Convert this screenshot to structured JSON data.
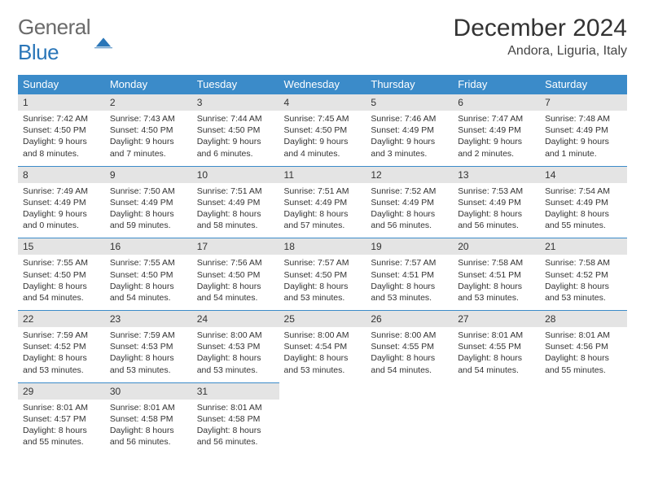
{
  "brand": {
    "word1": "General",
    "word2": "Blue"
  },
  "header": {
    "month_title": "December 2024",
    "location": "Andora, Liguria, Italy"
  },
  "styling": {
    "header_bg": "#3b8bc9",
    "header_text": "#ffffff",
    "daynum_bg": "#e4e4e4",
    "daynum_border": "#3b8bc9",
    "body_text": "#333333",
    "logo_gray": "#6a6a6a",
    "logo_blue": "#2a76b8",
    "font_family": "Arial",
    "month_title_fontsize": 30,
    "location_fontsize": 16,
    "dayheader_fontsize": 13,
    "daynum_fontsize": 12,
    "body_fontsize": 10.5
  },
  "day_headers": [
    "Sunday",
    "Monday",
    "Tuesday",
    "Wednesday",
    "Thursday",
    "Friday",
    "Saturday"
  ],
  "days": [
    {
      "n": 1,
      "sr": "7:42 AM",
      "ss": "4:50 PM",
      "dl": "9 hours and 8 minutes."
    },
    {
      "n": 2,
      "sr": "7:43 AM",
      "ss": "4:50 PM",
      "dl": "9 hours and 7 minutes."
    },
    {
      "n": 3,
      "sr": "7:44 AM",
      "ss": "4:50 PM",
      "dl": "9 hours and 6 minutes."
    },
    {
      "n": 4,
      "sr": "7:45 AM",
      "ss": "4:50 PM",
      "dl": "9 hours and 4 minutes."
    },
    {
      "n": 5,
      "sr": "7:46 AM",
      "ss": "4:49 PM",
      "dl": "9 hours and 3 minutes."
    },
    {
      "n": 6,
      "sr": "7:47 AM",
      "ss": "4:49 PM",
      "dl": "9 hours and 2 minutes."
    },
    {
      "n": 7,
      "sr": "7:48 AM",
      "ss": "4:49 PM",
      "dl": "9 hours and 1 minute."
    },
    {
      "n": 8,
      "sr": "7:49 AM",
      "ss": "4:49 PM",
      "dl": "9 hours and 0 minutes."
    },
    {
      "n": 9,
      "sr": "7:50 AM",
      "ss": "4:49 PM",
      "dl": "8 hours and 59 minutes."
    },
    {
      "n": 10,
      "sr": "7:51 AM",
      "ss": "4:49 PM",
      "dl": "8 hours and 58 minutes."
    },
    {
      "n": 11,
      "sr": "7:51 AM",
      "ss": "4:49 PM",
      "dl": "8 hours and 57 minutes."
    },
    {
      "n": 12,
      "sr": "7:52 AM",
      "ss": "4:49 PM",
      "dl": "8 hours and 56 minutes."
    },
    {
      "n": 13,
      "sr": "7:53 AM",
      "ss": "4:49 PM",
      "dl": "8 hours and 56 minutes."
    },
    {
      "n": 14,
      "sr": "7:54 AM",
      "ss": "4:49 PM",
      "dl": "8 hours and 55 minutes."
    },
    {
      "n": 15,
      "sr": "7:55 AM",
      "ss": "4:50 PM",
      "dl": "8 hours and 54 minutes."
    },
    {
      "n": 16,
      "sr": "7:55 AM",
      "ss": "4:50 PM",
      "dl": "8 hours and 54 minutes."
    },
    {
      "n": 17,
      "sr": "7:56 AM",
      "ss": "4:50 PM",
      "dl": "8 hours and 54 minutes."
    },
    {
      "n": 18,
      "sr": "7:57 AM",
      "ss": "4:50 PM",
      "dl": "8 hours and 53 minutes."
    },
    {
      "n": 19,
      "sr": "7:57 AM",
      "ss": "4:51 PM",
      "dl": "8 hours and 53 minutes."
    },
    {
      "n": 20,
      "sr": "7:58 AM",
      "ss": "4:51 PM",
      "dl": "8 hours and 53 minutes."
    },
    {
      "n": 21,
      "sr": "7:58 AM",
      "ss": "4:52 PM",
      "dl": "8 hours and 53 minutes."
    },
    {
      "n": 22,
      "sr": "7:59 AM",
      "ss": "4:52 PM",
      "dl": "8 hours and 53 minutes."
    },
    {
      "n": 23,
      "sr": "7:59 AM",
      "ss": "4:53 PM",
      "dl": "8 hours and 53 minutes."
    },
    {
      "n": 24,
      "sr": "8:00 AM",
      "ss": "4:53 PM",
      "dl": "8 hours and 53 minutes."
    },
    {
      "n": 25,
      "sr": "8:00 AM",
      "ss": "4:54 PM",
      "dl": "8 hours and 53 minutes."
    },
    {
      "n": 26,
      "sr": "8:00 AM",
      "ss": "4:55 PM",
      "dl": "8 hours and 54 minutes."
    },
    {
      "n": 27,
      "sr": "8:01 AM",
      "ss": "4:55 PM",
      "dl": "8 hours and 54 minutes."
    },
    {
      "n": 28,
      "sr": "8:01 AM",
      "ss": "4:56 PM",
      "dl": "8 hours and 55 minutes."
    },
    {
      "n": 29,
      "sr": "8:01 AM",
      "ss": "4:57 PM",
      "dl": "8 hours and 55 minutes."
    },
    {
      "n": 30,
      "sr": "8:01 AM",
      "ss": "4:58 PM",
      "dl": "8 hours and 56 minutes."
    },
    {
      "n": 31,
      "sr": "8:01 AM",
      "ss": "4:58 PM",
      "dl": "8 hours and 56 minutes."
    }
  ],
  "labels": {
    "sunrise_prefix": "Sunrise: ",
    "sunset_prefix": "Sunset: ",
    "daylight_prefix": "Daylight: "
  }
}
